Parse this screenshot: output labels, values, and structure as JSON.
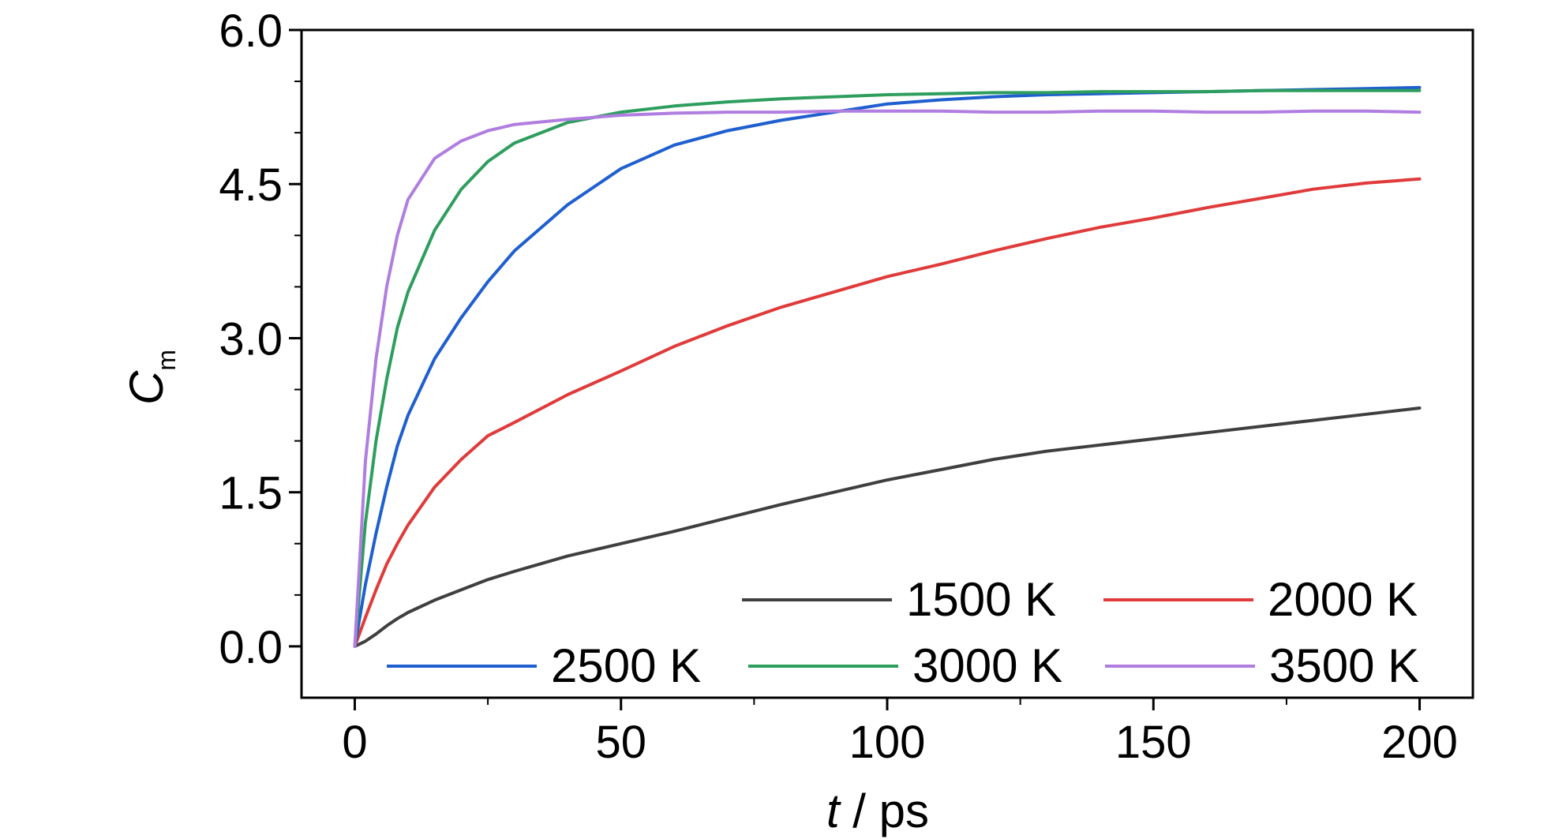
{
  "chart_data": {
    "type": "line",
    "xlabel": {
      "italic": "t",
      "rest": " / ps"
    },
    "ylabel": {
      "main": "C",
      "sub": "m"
    },
    "xlim": [
      -10,
      210
    ],
    "ylim": [
      -0.5,
      6.0
    ],
    "xticks": [
      0,
      50,
      100,
      150,
      200
    ],
    "xtick_labels": [
      "0",
      "50",
      "100",
      "150",
      "200"
    ],
    "yticks": [
      0.0,
      1.5,
      3.0,
      4.5,
      6.0
    ],
    "ytick_labels": [
      "0.0",
      "1.5",
      "3.0",
      "4.5",
      "6.0"
    ],
    "x": [
      0,
      2,
      4,
      6,
      8,
      10,
      15,
      20,
      25,
      30,
      40,
      50,
      60,
      70,
      80,
      90,
      100,
      110,
      120,
      130,
      140,
      150,
      160,
      170,
      180,
      190,
      200
    ],
    "series": [
      {
        "name": "1500 K",
        "color": "#3f3f3f",
        "values": [
          0.0,
          0.05,
          0.12,
          0.2,
          0.27,
          0.33,
          0.45,
          0.55,
          0.65,
          0.73,
          0.88,
          1.0,
          1.12,
          1.25,
          1.38,
          1.5,
          1.62,
          1.72,
          1.82,
          1.9,
          1.96,
          2.02,
          2.08,
          2.14,
          2.2,
          2.26,
          2.32
        ]
      },
      {
        "name": "2000 K",
        "color": "#e03b3b",
        "values": [
          0.0,
          0.28,
          0.55,
          0.8,
          1.0,
          1.18,
          1.55,
          1.82,
          2.05,
          2.18,
          2.45,
          2.68,
          2.92,
          3.12,
          3.3,
          3.45,
          3.6,
          3.72,
          3.85,
          3.97,
          4.08,
          4.17,
          4.27,
          4.36,
          4.45,
          4.51,
          4.55
        ]
      },
      {
        "name": "2500 K",
        "color": "#1f5fcf",
        "values": [
          0.0,
          0.6,
          1.1,
          1.55,
          1.95,
          2.25,
          2.8,
          3.2,
          3.55,
          3.85,
          4.3,
          4.65,
          4.88,
          5.02,
          5.12,
          5.2,
          5.28,
          5.32,
          5.35,
          5.37,
          5.38,
          5.39,
          5.4,
          5.41,
          5.42,
          5.43,
          5.44
        ]
      },
      {
        "name": "3000 K",
        "color": "#2e9e5e",
        "values": [
          0.0,
          1.2,
          2.0,
          2.6,
          3.1,
          3.45,
          4.05,
          4.45,
          4.72,
          4.9,
          5.1,
          5.2,
          5.26,
          5.3,
          5.33,
          5.35,
          5.37,
          5.38,
          5.39,
          5.39,
          5.4,
          5.4,
          5.4,
          5.41,
          5.41,
          5.41,
          5.41
        ]
      },
      {
        "name": "3500 K",
        "color": "#b07ee0",
        "values": [
          0.0,
          1.8,
          2.8,
          3.5,
          4.0,
          4.35,
          4.75,
          4.92,
          5.02,
          5.08,
          5.13,
          5.17,
          5.19,
          5.2,
          5.2,
          5.21,
          5.21,
          5.21,
          5.2,
          5.2,
          5.21,
          5.21,
          5.2,
          5.2,
          5.21,
          5.21,
          5.2
        ]
      }
    ],
    "legend": [
      {
        "name": "1500 K",
        "color": "#3f3f3f"
      },
      {
        "name": "2000 K",
        "color": "#e03b3b"
      },
      {
        "name": "2500 K",
        "color": "#1f5fcf"
      },
      {
        "name": "3000 K",
        "color": "#2e9e5e"
      },
      {
        "name": "3500 K",
        "color": "#b07ee0"
      }
    ],
    "legend_placement": "bottom-right",
    "grid": false
  }
}
